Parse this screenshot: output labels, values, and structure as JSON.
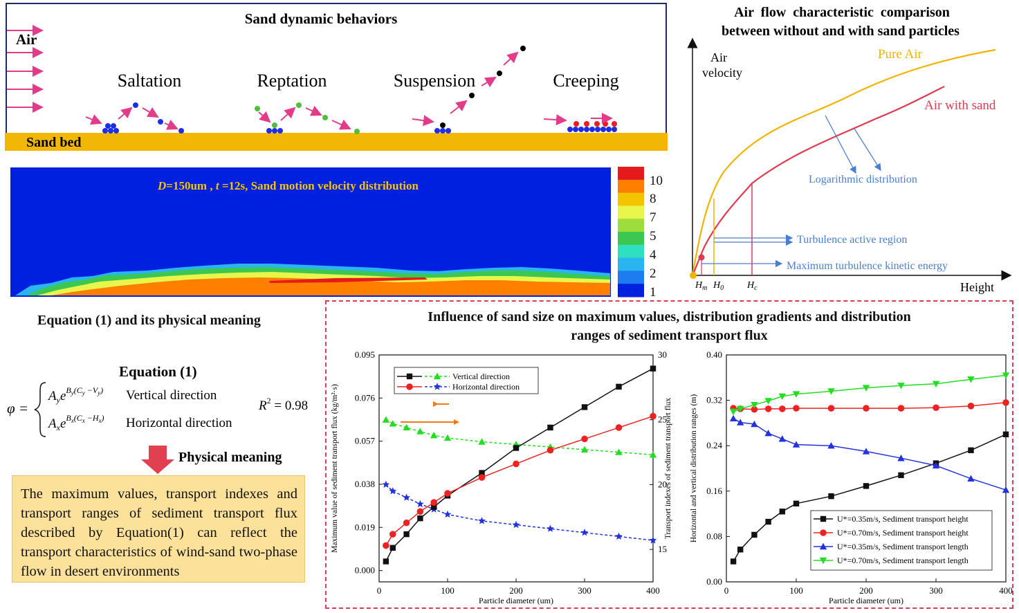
{
  "panel_sand": {
    "title": "Sand dynamic behaviors",
    "air_label": "Air",
    "bed_label": "Sand bed",
    "behaviors": [
      "Saltation",
      "Reptation",
      "Suspension",
      "Creeping"
    ]
  },
  "panel_velocity": {
    "caption_d": "D",
    "caption_rest1": "=150um , ",
    "caption_t": "t",
    "caption_rest2": " =12s, Sand motion velocity distribution",
    "colorbar_ticks": [
      "10",
      "8",
      "7",
      "5",
      "4",
      "2",
      "1"
    ],
    "colors": [
      "#e41a1c",
      "#ff7f00",
      "#f5c400",
      "#e8f54a",
      "#9ede3c",
      "#3cc850",
      "#2fe0c0",
      "#2ab4f0",
      "#1c7cf0",
      "#0020e0"
    ]
  },
  "panel_airflow": {
    "title_line1": "Air  flow  characteristic  comparison",
    "title_line2": "between without and with sand particles",
    "y_label_1": "Air",
    "y_label_2": "velocity",
    "x_label": "Height",
    "pure_air": "Pure Air",
    "air_with_sand": "Air with sand",
    "log_distribution": "Logarithmic distribution",
    "turbulence_region": "Turbulence active region",
    "max_tke": "Maximum turbulence kinetic energy",
    "tick_hm": "H",
    "tick_hm_sub": "m",
    "tick_h0": "H",
    "tick_h0_sub": "0",
    "tick_hc": "H",
    "tick_hc_sub": "c",
    "pure_air_color": "#f0b400",
    "sand_air_color": "#e03a50",
    "annot_color": "#4a7ed0"
  },
  "panel_equation": {
    "title": "Equation (1) and its physical meaning",
    "eq_name": "Equation (1)",
    "phi": "φ =",
    "row1_term": "A",
    "row1_sub": "y",
    "row1_e": "e",
    "row1_exp": "B",
    "row1_exp_sub": "y",
    "row1_paren": "(C",
    "row1_paren_sub": "y",
    "row1_minus": " −V",
    "row1_v_sub": "y",
    "row1_close": ")",
    "row1_label": "Vertical direction",
    "row2_term": "A",
    "row2_sub": "x",
    "row2_e": "e",
    "row2_exp": "B",
    "row2_exp_sub": "x",
    "row2_paren": "(C",
    "row2_paren_sub": "x",
    "row2_minus": " −H",
    "row2_h_sub": "x",
    "row2_close": ")",
    "row2_label": "Horizontal direction",
    "r2": "R",
    "r2_sup": "2",
    "r2_val": " = 0.98",
    "physical_meaning": "Physical meaning",
    "meaning_text": "The maximum values, transport indexes and transport ranges of sediment transport flux described by Equation(1) can reflect the transport characteristics of wind-sand two-phase flow in desert environments"
  },
  "panel_charts": {
    "title_line1": "Influence of sand size on maximum values, distribution gradients and distribution",
    "title_line2": "ranges of sediment transport flux"
  },
  "chart_data": [
    {
      "type": "line",
      "x": [
        10,
        20,
        40,
        60,
        80,
        100,
        150,
        200,
        250,
        300,
        350,
        400
      ],
      "xlabel": "Particle diameter (um)",
      "ylabel": "Maximum value of sediment transport flux (kg/m²·s)",
      "y2label": "Transport indexes of sediment transport flux",
      "xlim": [
        0,
        400
      ],
      "ylim": [
        -0.005,
        0.095
      ],
      "y2lim": [
        12.5,
        30
      ],
      "xticks": [
        "0",
        "100",
        "200",
        "300",
        "400"
      ],
      "yticks": [
        "0.000",
        "0.019",
        "0.038",
        "0.057",
        "0.076",
        "0.095"
      ],
      "y2ticks": [
        "15",
        "20",
        "25",
        "30"
      ],
      "series": [
        {
          "name": "Vertical direction",
          "axis": "right",
          "color": "#22dd22",
          "marker": "triangle",
          "dash": true,
          "values": [
            25.0,
            24.7,
            24.4,
            24.1,
            23.8,
            23.6,
            23.3,
            23.1,
            22.9,
            22.7,
            22.5,
            22.3
          ]
        },
        {
          "name": "Horizontal direction",
          "axis": "right",
          "color": "#2233dd",
          "marker": "star",
          "dash": true,
          "values": [
            20.0,
            19.5,
            19.0,
            18.5,
            18.1,
            17.7,
            17.2,
            16.9,
            16.6,
            16.3,
            16.0,
            15.7
          ]
        },
        {
          "name": "",
          "axis": "left",
          "color": "#111111",
          "marker": "square",
          "values": [
            0.004,
            0.01,
            0.016,
            0.023,
            0.028,
            0.033,
            0.043,
            0.054,
            0.063,
            0.072,
            0.081,
            0.089
          ]
        },
        {
          "name": "",
          "axis": "left",
          "color": "#ee2222",
          "marker": "circle",
          "values": [
            0.011,
            0.016,
            0.021,
            0.026,
            0.03,
            0.034,
            0.041,
            0.047,
            0.053,
            0.058,
            0.063,
            0.068
          ]
        }
      ]
    },
    {
      "type": "line",
      "x": [
        10,
        20,
        40,
        60,
        80,
        100,
        150,
        200,
        250,
        300,
        350,
        400
      ],
      "xlabel": "Particle diameter (um)",
      "ylabel": "Horizontal and vertical distribution ranges (m)",
      "xlim": [
        0,
        400
      ],
      "ylim": [
        0,
        0.4
      ],
      "xticks": [
        "0",
        "100",
        "200",
        "300",
        "400"
      ],
      "yticks": [
        "0.00",
        "0.08",
        "0.16",
        "0.24",
        "0.32",
        "0.40"
      ],
      "series": [
        {
          "name": "U*=0.35m/s, Sediment transport height",
          "color": "#111111",
          "marker": "square",
          "values": [
            0.036,
            0.057,
            0.083,
            0.106,
            0.124,
            0.138,
            0.151,
            0.169,
            0.188,
            0.209,
            0.232,
            0.26
          ]
        },
        {
          "name": "U*=0.70m/s, Sediment transport height",
          "color": "#ee2222",
          "marker": "circle",
          "values": [
            0.306,
            0.305,
            0.304,
            0.305,
            0.305,
            0.306,
            0.306,
            0.306,
            0.306,
            0.307,
            0.31,
            0.316
          ]
        },
        {
          "name": "U*=0.35m/s, Sediment transport length",
          "color": "#2233dd",
          "marker": "triangle",
          "values": [
            0.288,
            0.281,
            0.278,
            0.262,
            0.252,
            0.242,
            0.24,
            0.23,
            0.218,
            0.205,
            0.182,
            0.162
          ]
        },
        {
          "name": "U*=0.70m/s, Sediment transport length",
          "color": "#22dd22",
          "marker": "triangle-down",
          "values": [
            0.3,
            0.305,
            0.312,
            0.319,
            0.327,
            0.331,
            0.336,
            0.342,
            0.346,
            0.349,
            0.357,
            0.364
          ]
        }
      ]
    }
  ]
}
